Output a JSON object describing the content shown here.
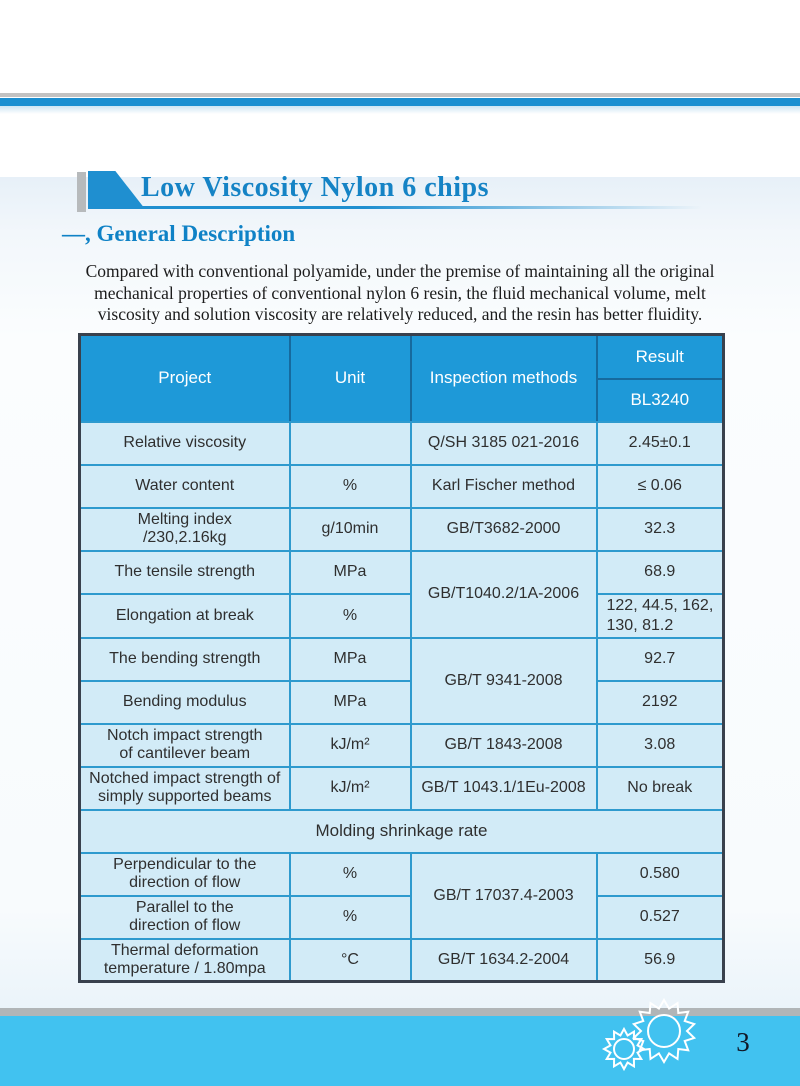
{
  "page": {
    "title": "Low Viscosity Nylon 6 chips",
    "section_heading": "一、General Description",
    "paragraph": "Compared with conventional polyamide, under the premise of maintaining all the original mechanical properties of conventional nylon 6 resin, the fluid mechanical volume, melt viscosity and solution viscosity are relatively reduced, and the resin has better fluidity.",
    "page_number": "3"
  },
  "colors": {
    "accent_blue": "#1583c5",
    "header_blue": "#1e99d8",
    "cell_blue": "#d2ebf7",
    "border_blue": "#2e9ace",
    "footer_blue": "#41c2f0",
    "top_bar_blue": "#1a8fd1",
    "gray_bar": "#b7babc"
  },
  "icons": [
    "gear-icon-large",
    "gear-icon-small"
  ],
  "table": {
    "columns": [
      "Project",
      "Unit",
      "Inspection methods",
      "Result"
    ],
    "result_grade": "BL3240",
    "section_row": "Molding shrinkage rate",
    "rows": [
      {
        "project": "Relative viscosity",
        "unit": "",
        "inspection": "Q/SH 3185 021-2016",
        "result": "2.45±0.1"
      },
      {
        "project": "Water content",
        "unit": "%",
        "inspection": "Karl Fischer method",
        "result": "≤ 0.06"
      },
      {
        "project": "Melting index\n/230,2.16kg",
        "unit": "g/10min",
        "inspection": "GB/T3682-2000",
        "result": "32.3"
      },
      {
        "project": "The tensile strength",
        "unit": "MPa",
        "inspection": "GB/T1040.2/1A-2006",
        "result": "68.9"
      },
      {
        "project": "Elongation at break",
        "unit": "%",
        "inspection": "",
        "result": "122、44.5、162、\n130、81.2"
      },
      {
        "project": "The bending strength",
        "unit": "MPa",
        "inspection": "GB/T 9341-2008",
        "result": "92.7"
      },
      {
        "project": "Bending modulus",
        "unit": "MPa",
        "inspection": "",
        "result": "2192"
      },
      {
        "project": "Notch impact strength\nof cantilever beam",
        "unit": "kJ/m²",
        "inspection": "GB/T 1843-2008",
        "result": "3.08"
      },
      {
        "project": "Notched impact strength of\nsimply supported beams",
        "unit": "kJ/m²",
        "inspection": "GB/T 1043.1/1Eu-2008",
        "result": "No break"
      },
      {
        "project": "Perpendicular to the\ndirection of flow",
        "unit": "%",
        "inspection": "GB/T 17037.4-2003",
        "result": "0.580"
      },
      {
        "project": "Parallel to the\ndirection of flow",
        "unit": "%",
        "inspection": "",
        "result": "0.527"
      },
      {
        "project": "Thermal deformation\ntemperature / 1.80mpa",
        "unit": "℃",
        "inspection": "GB/T 1634.2-2004",
        "result": "56.9"
      }
    ]
  }
}
